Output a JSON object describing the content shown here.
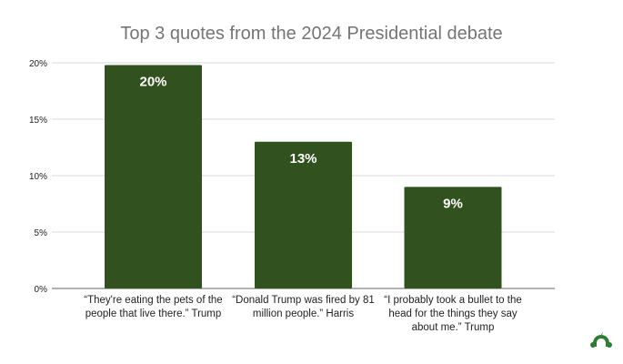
{
  "chart_data": {
    "type": "bar",
    "title": "Top 3 quotes from the 2024 Presidential debate",
    "categories": [
      "“They're eating the pets of the people that live there.”  Trump",
      "“Donald Trump was fired by 81 million people.”  Harris",
      "“I probably took a bullet to the head for the things they say about me.”  Trump"
    ],
    "values": [
      19.8,
      13,
      9
    ],
    "data_labels": [
      "20%",
      "13%",
      "9%"
    ],
    "xlabel": "",
    "ylabel": "",
    "ylim": [
      0,
      20
    ],
    "yticks": [
      "0%",
      "5%",
      "10%",
      "15%",
      "20%"
    ],
    "grid": true,
    "legend": "none",
    "bar_color": "#31511e",
    "label_color": "#ffffff"
  },
  "logo": {
    "name": "surveymonkey-logo",
    "color": "#2e7d32"
  }
}
